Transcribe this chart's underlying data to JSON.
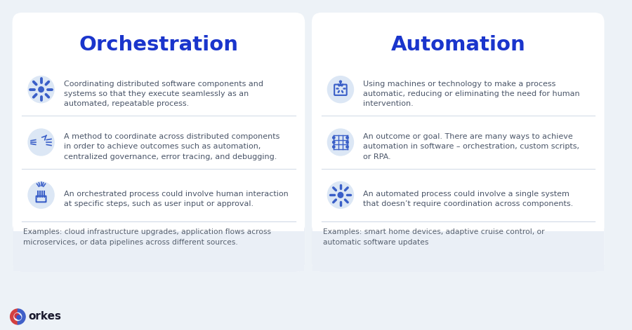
{
  "bg_color": "#edf2f7",
  "card_color": "#ffffff",
  "card_bg_examples": "#eaeff6",
  "title_color": "#1a35cc",
  "text_color": "#4a5568",
  "example_text_color": "#555f6e",
  "separator_color": "#d5dde8",
  "icon_bg_color": "#dce7f5",
  "icon_color": "#3a5fc8",
  "left_title": "Orchestration",
  "right_title": "Automation",
  "left_bullets": [
    "Coordinating distributed software components and\nsystems so that they execute seamlessly as an\nautomated, repeatable process.",
    "A method to coordinate across distributed components\nin order to achieve outcomes such as automation,\ncentralized governance, error tracing, and debugging.",
    "An orchestrated process could involve human interaction\nat specific steps, such as user input or approval."
  ],
  "right_bullets": [
    "Using machines or technology to make a process\nautomatic, reducing or eliminating the need for human\nintervention.",
    "An outcome or goal. There are many ways to achieve\nautomation in software – orchestration, custom scripts,\nor RPA.",
    "An automated process could involve a single system\nthat doesn’t require coordination across components."
  ],
  "left_example": "Examples: cloud infrastructure upgrades, application flows across\nmicroservices, or data pipelines across different sources.",
  "right_example": "Examples: smart home devices, adaptive cruise control, or\nautomatic software updates",
  "logo_text": "orkes",
  "logo_color": "#1a1a2e"
}
